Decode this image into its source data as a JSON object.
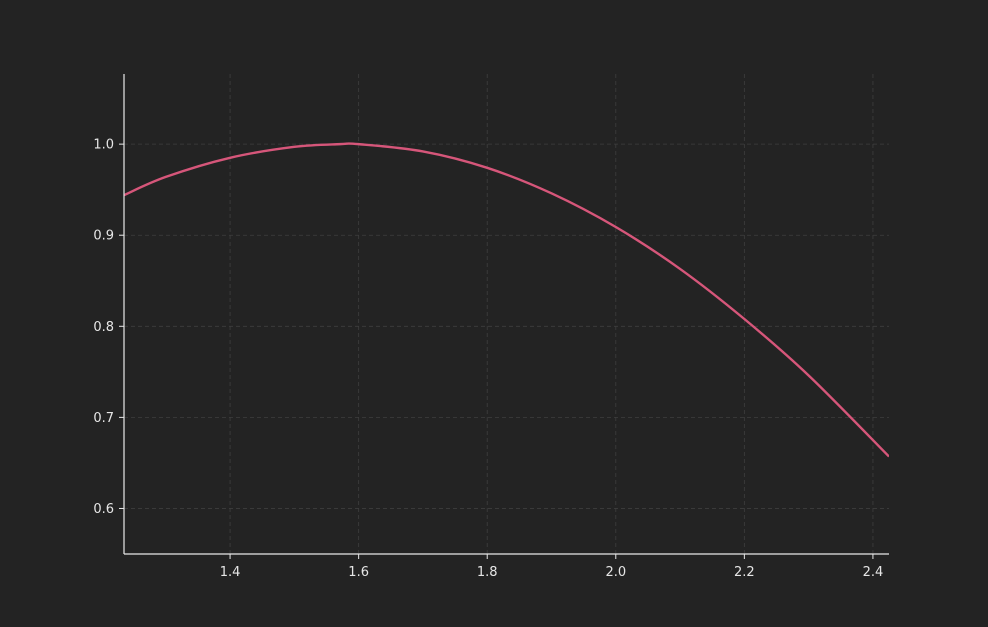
{
  "colors": {
    "background": "#232323",
    "axis": "#e8e8e8",
    "grid": "#3e3e3e",
    "tick_label": "#e6e6e6",
    "series": "#d6567a"
  },
  "chart_data": {
    "type": "line",
    "title": "",
    "xlabel": "",
    "ylabel": "",
    "grid": true,
    "legend": "none",
    "xlim": [
      1.235,
      2.425
    ],
    "ylim": [
      0.55,
      1.077
    ],
    "x_ticks": [
      1.4,
      1.6,
      1.8,
      2.0,
      2.2,
      2.4
    ],
    "x_tick_labels": [
      "1.4",
      "1.6",
      "1.8",
      "2.0",
      "2.2",
      "2.4"
    ],
    "y_ticks": [
      0.6,
      0.7,
      0.8,
      0.9,
      1.0
    ],
    "y_tick_labels": [
      "0.6",
      "0.7",
      "0.8",
      "0.9",
      "1.0"
    ],
    "series": [
      {
        "color": "#d6567a",
        "x": [
          1.235,
          1.3,
          1.4,
          1.5,
          1.571,
          1.6,
          1.7,
          1.8,
          1.9,
          2.0,
          2.1,
          2.2,
          2.3,
          2.425
        ],
        "y": [
          0.944,
          0.964,
          0.985,
          0.997,
          1.0,
          1.0,
          0.992,
          0.974,
          0.946,
          0.909,
          0.863,
          0.808,
          0.746,
          0.657
        ]
      }
    ]
  }
}
